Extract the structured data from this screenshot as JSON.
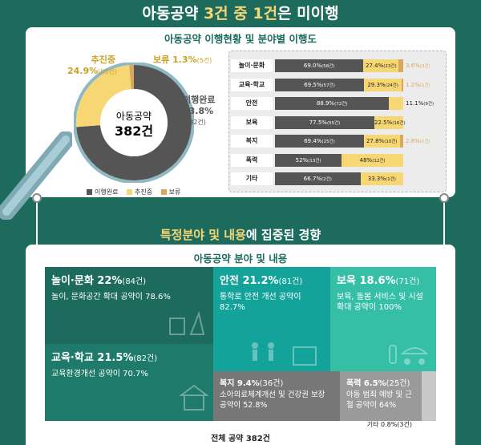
{
  "headline": {
    "part1": "아동공약 ",
    "highlight": "3건 중 1건",
    "part2": "은 미이행"
  },
  "panel1_title": "아동공약 이행현황 및 분야별 이행도",
  "donut": {
    "center_label": "아동공약",
    "center_value": "382건",
    "slices": [
      {
        "name": "이행완료",
        "percent": 73.8,
        "count": 282,
        "color": "#555555"
      },
      {
        "name": "추진중",
        "percent": 24.9,
        "count": 95,
        "color": "#f7d774"
      },
      {
        "name": "보류",
        "percent": 1.3,
        "count": 5,
        "color": "#d9a85c"
      }
    ],
    "label_done_name": "이행완료",
    "label_done_pct": "73.8%",
    "label_done_cnt": "(282건)",
    "label_prog_name": "추진중",
    "label_prog_pct": "24.9%",
    "label_prog_cnt": "(95건)",
    "label_hold_name": "보류",
    "label_hold_pct": "1.3%",
    "label_hold_cnt": "(5건)"
  },
  "legend": {
    "items": [
      "이행완료",
      "추진중",
      "보류"
    ]
  },
  "chart_data": [
    {
      "type": "pie",
      "categories": [
        "이행완료",
        "추진중",
        "보류"
      ],
      "values": [
        73.8,
        24.9,
        1.3
      ],
      "counts": [
        282,
        95,
        5
      ],
      "title": ""
    },
    {
      "type": "bar",
      "orientation": "horizontal-stacked",
      "categories": [
        "놀이·문화",
        "교육·학교",
        "안전",
        "보육",
        "복지",
        "폭력",
        "기타"
      ],
      "series": [
        {
          "name": "이행완료",
          "values": [
            69.0,
            69.5,
            88.9,
            77.5,
            69.4,
            52,
            66.7
          ],
          "counts": [
            "(58건)",
            "(57건)",
            "(72건)",
            "(55건)",
            "(25건)",
            "(13건)",
            "(2건)"
          ],
          "labels": [
            "69.0%",
            "69.5%",
            "88.9%",
            "77.5%",
            "69.4%",
            "52%",
            "66.7%"
          ]
        },
        {
          "name": "추진중",
          "values": [
            27.4,
            29.3,
            11.1,
            22.5,
            27.8,
            48,
            33.3
          ],
          "counts": [
            "(23건)",
            "(24건)",
            "(9건)",
            "(16건)",
            "(10건)",
            "(12건)",
            "(1건)"
          ],
          "labels": [
            "27.4%",
            "29.3%",
            "11.1%",
            "22.5%",
            "27.8%",
            "48%",
            "33.3%"
          ]
        },
        {
          "name": "보류",
          "values": [
            3.6,
            1.2,
            0,
            0,
            2.8,
            0,
            0
          ],
          "counts": [
            "(3건)",
            "(1건)",
            "",
            "",
            "(1건)",
            "",
            ""
          ],
          "labels": [
            "3.6%",
            "1.2%",
            "",
            "",
            "2.8%",
            "",
            ""
          ]
        }
      ],
      "xlim": [
        0,
        100
      ]
    }
  ],
  "section2_title": {
    "highlight": "특정분야 및 내용",
    "rest": "에 집중된 경향"
  },
  "panel2_title": "아동공약 분야 및 내용",
  "tiles": {
    "play": {
      "title": "놀이·문화 22%",
      "unit": "(84건)",
      "desc": "놀이, 문화공간 확대 공약이 78.6%"
    },
    "edu": {
      "title": "교육·학교 21.5%",
      "unit": "(82건)",
      "desc": "교육환경개선 공약이 70.7%"
    },
    "safety": {
      "title": "안전 21.2%",
      "unit": "(81건)",
      "desc": "통학로 안전 개선 공약이 82.7%"
    },
    "care": {
      "title": "보육 18.6%",
      "unit": "(71건)",
      "desc": "보육, 돌봄 서비스 및 시설 확대 공약이 100%"
    },
    "welfare": {
      "title": "복지 9.4%",
      "unit": "(36건)",
      "desc": "소아의료체계개선 및 건강권 보장 공약이 52.8%"
    },
    "violence": {
      "title": "폭력 6.5%",
      "unit": "(25건)",
      "desc": "아동 범죄 예방 및 근절 공약이 64%"
    }
  },
  "other_label": "기타 0.8%(3건)",
  "total_label": "전체 공약 382건",
  "colors": {
    "bg": "#1c6b5d",
    "done": "#555555",
    "prog": "#f7d774",
    "hold": "#d9a85c"
  }
}
